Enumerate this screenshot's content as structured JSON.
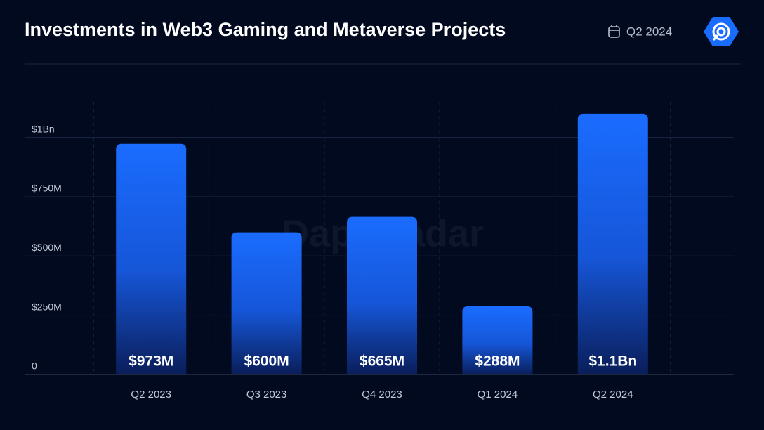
{
  "title": "Investments in Web3 Gaming and Metaverse Projects",
  "date_label": "Q2 2024",
  "watermark": "DappRadar",
  "chart_data": {
    "type": "bar",
    "categories": [
      "Q2 2023",
      "Q3 2023",
      "Q4 2023",
      "Q1 2024",
      "Q2 2024"
    ],
    "values": [
      973,
      600,
      665,
      288,
      1100
    ],
    "value_labels": [
      "$973M",
      "$600M",
      "$665M",
      "$288M",
      "$1.1Bn"
    ],
    "color": "#1a6cff",
    "ylim": [
      0,
      1150
    ],
    "yticks": [
      0,
      {
        "value": 250,
        "label": "$250M"
      },
      {
        "value": 500,
        "label": "$500M"
      },
      {
        "value": 750,
        "label": "$750M"
      },
      {
        "value": 1000,
        "label": "$1Bn"
      }
    ],
    "grid": true
  }
}
